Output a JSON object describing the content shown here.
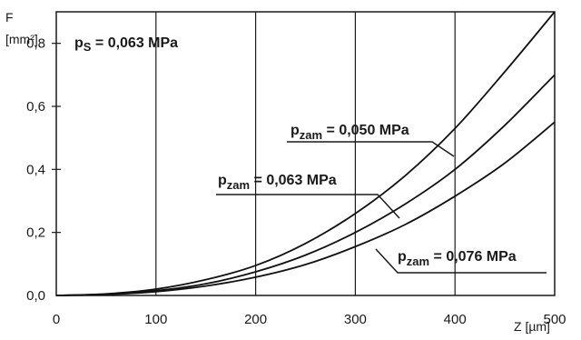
{
  "chart_data": {
    "type": "line",
    "ylabel_symbol": "F",
    "ylabel_unit": "[mm²]",
    "xlabel": "Z [µm]",
    "xlim": [
      0,
      500
    ],
    "ylim": [
      0,
      0.9
    ],
    "grid": "vertical",
    "x_ticks": [
      "0",
      "100",
      "200",
      "300",
      "400",
      "500"
    ],
    "y_ticks": [
      "0,0",
      "0,2",
      "0,4",
      "0,6",
      "0,8"
    ],
    "y_tick_values": [
      0,
      0.2,
      0.4,
      0.6,
      0.8
    ],
    "x_tick_values": [
      0,
      100,
      200,
      300,
      400,
      500
    ],
    "condition": {
      "symbol": "p",
      "subscript": "S",
      "value": " = 0,063 MPa"
    },
    "series": [
      {
        "symbol": "p",
        "subscript": "zam",
        "value": " = 0,050 MPa",
        "x": [
          0,
          50,
          100,
          150,
          200,
          250,
          300,
          350,
          400,
          450,
          500
        ],
        "y": [
          0,
          0.005,
          0.02,
          0.05,
          0.095,
          0.165,
          0.26,
          0.38,
          0.53,
          0.71,
          0.9
        ]
      },
      {
        "symbol": "p",
        "subscript": "zam",
        "value": " = 0,063 MPa",
        "x": [
          0,
          50,
          100,
          150,
          200,
          250,
          300,
          350,
          400,
          450,
          500
        ],
        "y": [
          0,
          0.004,
          0.015,
          0.037,
          0.075,
          0.128,
          0.2,
          0.29,
          0.4,
          0.54,
          0.7
        ]
      },
      {
        "symbol": "p",
        "subscript": "zam",
        "value": " = 0,076 MPa",
        "x": [
          0,
          50,
          100,
          150,
          200,
          250,
          300,
          350,
          400,
          450,
          500
        ],
        "y": [
          0,
          0.003,
          0.012,
          0.03,
          0.058,
          0.098,
          0.155,
          0.225,
          0.315,
          0.42,
          0.55
        ]
      }
    ]
  }
}
